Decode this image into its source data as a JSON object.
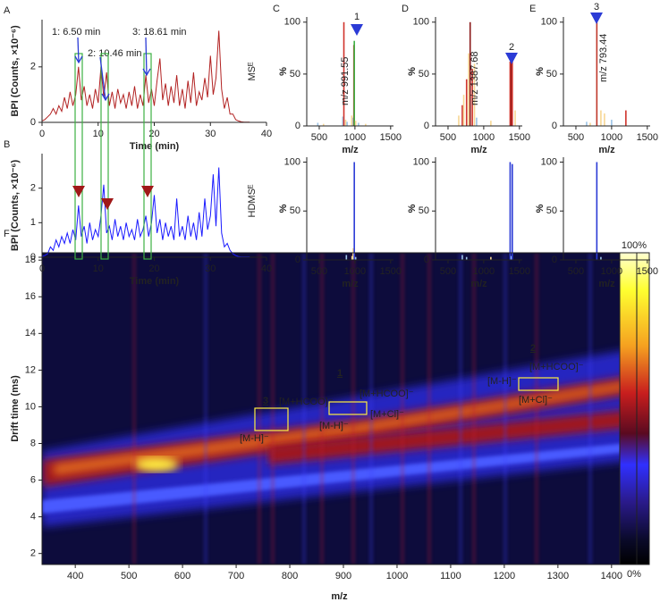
{
  "chart_data": [
    {
      "type": "line",
      "panel": "A",
      "ylabel": "BPI (Counts, ×10⁻⁶)",
      "xlabel": "Time (min)",
      "color": "#b22222",
      "xlim": [
        0,
        40
      ],
      "ylim": [
        0,
        3.7
      ],
      "xticks": [
        0,
        10,
        20,
        30,
        40
      ],
      "yticks": [
        0,
        2
      ],
      "annotations": [
        "1: 6.50 min",
        "2: 10.46 min",
        "3: 18.61 min",
        "MSᴱ"
      ],
      "x": [
        0,
        0.5,
        1,
        1.5,
        2,
        2.5,
        3,
        3.5,
        4,
        4.5,
        5,
        5.5,
        6,
        6.5,
        7,
        7.5,
        8,
        8.5,
        9,
        9.5,
        10,
        10.5,
        11,
        11.5,
        12,
        12.5,
        13,
        13.5,
        14,
        14.5,
        15,
        15.5,
        16,
        16.5,
        17,
        17.5,
        18,
        18.5,
        19,
        19.5,
        20,
        20.5,
        21,
        21.5,
        22,
        22.5,
        23,
        23.5,
        24,
        24.5,
        25,
        25.5,
        26,
        26.5,
        27,
        27.5,
        28,
        28.5,
        29,
        29.5,
        30,
        30.5,
        31,
        31.5,
        32,
        32.5,
        33,
        33.5,
        34,
        34.5,
        35,
        35.5,
        36,
        36.5,
        37
      ],
      "values": [
        0.05,
        0.1,
        0.2,
        0.3,
        0.5,
        0.3,
        0.6,
        0.4,
        0.9,
        0.5,
        1.1,
        0.6,
        1.0,
        2.0,
        0.8,
        1.3,
        0.6,
        1.0,
        0.5,
        1.2,
        0.7,
        2.0,
        0.9,
        1.8,
        0.6,
        1.1,
        0.5,
        1.2,
        0.7,
        1.0,
        0.5,
        1.1,
        0.6,
        1.3,
        0.5,
        1.0,
        0.6,
        1.7,
        0.7,
        1.2,
        0.6,
        1.5,
        2.3,
        0.8,
        1.4,
        0.6,
        1.3,
        0.7,
        1.7,
        0.6,
        1.2,
        0.5,
        1.5,
        0.7,
        1.8,
        0.6,
        1.1,
        0.8,
        1.6,
        0.9,
        2.4,
        1.0,
        1.6,
        3.3,
        1.2,
        0.5,
        0.9,
        0.3,
        0.3,
        0.1,
        0.05,
        0.02,
        0.01,
        0.01,
        0.01
      ]
    },
    {
      "type": "line",
      "panel": "B",
      "ylabel": "BPI (Counts, ×10⁻⁶)",
      "xlabel": "Time (min)",
      "color": "#1a1aff",
      "xlim": [
        0,
        40
      ],
      "ylim": [
        0,
        3
      ],
      "xticks": [
        0,
        10,
        20,
        30,
        40
      ],
      "yticks": [
        0,
        1,
        2
      ],
      "annotations": [
        "HDMSᴱ"
      ],
      "x": [
        0,
        0.5,
        1,
        1.5,
        2,
        2.5,
        3,
        3.5,
        4,
        4.5,
        5,
        5.5,
        6,
        6.5,
        7,
        7.5,
        8,
        8.5,
        9,
        9.5,
        10,
        10.5,
        11,
        11.5,
        12,
        12.5,
        13,
        13.5,
        14,
        14.5,
        15,
        15.5,
        16,
        16.5,
        17,
        17.5,
        18,
        18.5,
        19,
        19.5,
        20,
        20.5,
        21,
        21.5,
        22,
        22.5,
        23,
        23.5,
        24,
        24.5,
        25,
        25.5,
        26,
        26.5,
        27,
        27.5,
        28,
        28.5,
        29,
        29.5,
        30,
        30.5,
        31,
        31.5,
        32,
        32.5,
        33,
        33.5,
        34,
        34.5,
        35,
        35.5,
        36,
        36.5,
        37
      ],
      "values": [
        0.02,
        0.05,
        0.1,
        0.3,
        0.2,
        0.5,
        0.3,
        0.6,
        0.4,
        0.7,
        0.4,
        0.8,
        0.5,
        1.5,
        0.6,
        0.9,
        0.4,
        1.0,
        0.5,
        0.8,
        0.6,
        1.2,
        2.1,
        0.7,
        0.9,
        0.5,
        1.1,
        0.6,
        0.9,
        0.5,
        1.0,
        0.6,
        0.8,
        0.5,
        1.1,
        0.6,
        0.8,
        1.2,
        0.6,
        1.0,
        1.8,
        0.7,
        1.1,
        0.5,
        1.0,
        0.6,
        0.9,
        0.5,
        1.7,
        0.6,
        0.9,
        0.5,
        1.2,
        0.6,
        1.0,
        0.5,
        1.3,
        0.6,
        1.7,
        0.8,
        1.2,
        2.4,
        0.9,
        2.6,
        0.7,
        0.3,
        0.4,
        0.2,
        0.1,
        0.05,
        0.02,
        0.01,
        0.01,
        0.01,
        0.01
      ]
    },
    {
      "type": "bar",
      "panel": "C",
      "ylabel": "%",
      "xlabel": "m/z",
      "xlim": [
        325,
        1540
      ],
      "ylim": [
        0,
        105
      ],
      "xticks": [
        500,
        1000,
        1500
      ],
      "yticks": [
        0,
        50,
        100
      ],
      "annotations": [
        "m/z 991.55",
        "1"
      ],
      "x": [
        480,
        560,
        830,
        845,
        870,
        890,
        955,
        975,
        985,
        991,
        1010,
        1050,
        1150
      ],
      "values": [
        3,
        2,
        9,
        100,
        6,
        4,
        10,
        8,
        78,
        82,
        5,
        3,
        2
      ],
      "colors": [
        "#9cc3e6",
        "#f7d794",
        "#9cc3e6",
        "#d0342c",
        "#f7d794",
        "#9cc3e6",
        "#f7d794",
        "#9cc3e6",
        "#d0342c",
        "#3cb043",
        "#f7d794",
        "#9cc3e6",
        "#f7d794"
      ]
    },
    {
      "type": "bar",
      "ylabel": "%",
      "xlabel": "m/z",
      "xlim": [
        325,
        1540
      ],
      "ylim": [
        0,
        105
      ],
      "xticks": [
        500,
        1000,
        1500
      ],
      "yticks": [
        0,
        50,
        100
      ],
      "x": [
        880,
        960,
        975,
        991,
        1010
      ],
      "values": [
        5,
        4,
        12,
        100,
        3
      ],
      "colors": [
        "#9cc3e6",
        "#f7d794",
        "#f7d794",
        "#2b3bd6",
        "#9cc3e6"
      ]
    },
    {
      "type": "bar",
      "panel": "D",
      "ylabel": "%",
      "xlabel": "m/z",
      "xlim": [
        325,
        1540
      ],
      "ylim": [
        0,
        105
      ],
      "xticks": [
        500,
        1000,
        1500
      ],
      "yticks": [
        0,
        50,
        100
      ],
      "annotations": [
        "m/z 1387.68",
        "2"
      ],
      "x": [
        650,
        700,
        720,
        760,
        790,
        810,
        840,
        870,
        900,
        1100,
        1370,
        1387,
        1400,
        1440
      ],
      "values": [
        10,
        20,
        30,
        45,
        70,
        100,
        55,
        60,
        8,
        5,
        62,
        65,
        63,
        15
      ],
      "colors": [
        "#f7d794",
        "#d0342c",
        "#f7d794",
        "#d0342c",
        "#f7d794",
        "#8b1a1a",
        "#d0342c",
        "#f7d794",
        "#9cc3e6",
        "#f7d794",
        "#d0342c",
        "#8b1a1a",
        "#d0342c",
        "#f7d794"
      ]
    },
    {
      "type": "bar",
      "ylabel": "%",
      "xlabel": "m/z",
      "xlim": [
        325,
        1540
      ],
      "ylim": [
        0,
        105
      ],
      "xticks": [
        500,
        1000,
        1500
      ],
      "yticks": [
        0,
        50,
        100
      ],
      "x": [
        700,
        760,
        1100,
        1370,
        1387,
        1400
      ],
      "values": [
        5,
        3,
        3,
        100,
        4,
        98
      ],
      "colors": [
        "#9cc3e6",
        "#9cc3e6",
        "#f7d794",
        "#2b3bd6",
        "#9cc3e6",
        "#2b3bd6"
      ]
    },
    {
      "type": "bar",
      "panel": "E",
      "ylabel": "%",
      "xlabel": "m/z",
      "xlim": [
        325,
        1540
      ],
      "ylim": [
        0,
        105
      ],
      "xticks": [
        500,
        1000,
        1500
      ],
      "yticks": [
        0,
        50,
        100
      ],
      "annotations": [
        "m/z 793.44",
        "3"
      ],
      "x": [
        650,
        700,
        793,
        850,
        900,
        1000,
        1200
      ],
      "values": [
        4,
        3,
        100,
        15,
        12,
        6,
        15
      ],
      "colors": [
        "#9cc3e6",
        "#f7d794",
        "#c0392b",
        "#f7d794",
        "#f7d794",
        "#9cc3e6",
        "#d0342c"
      ]
    },
    {
      "type": "bar",
      "ylabel": "%",
      "xlabel": "m/z",
      "xlim": [
        325,
        1540
      ],
      "ylim": [
        0,
        105
      ],
      "xticks": [
        500,
        1000,
        1500
      ],
      "yticks": [
        0,
        50,
        100
      ],
      "x": [
        793,
        850
      ],
      "values": [
        100,
        3
      ],
      "colors": [
        "#2b3bd6",
        "#9cc3e6"
      ]
    },
    {
      "type": "heatmap",
      "panel": "F",
      "ylabel": "Drift time (ms)",
      "xlabel": "m/z",
      "xlim": [
        338,
        1447
      ],
      "ylim": [
        1.4,
        18.4
      ],
      "xticks": [
        400,
        500,
        600,
        700,
        800,
        900,
        1000,
        1100,
        1200,
        1300,
        1400
      ],
      "yticks": [
        2,
        4,
        6,
        8,
        10,
        12,
        14,
        16,
        18
      ],
      "colorbar_labels": [
        "100%",
        "0%"
      ],
      "annotations": [
        "3",
        "[M+HCOO]⁻",
        "[M-H]⁻",
        "1",
        "[M+HCOO]⁻",
        "[M-H]⁻",
        "[M+Cl]⁻",
        "2",
        "[M+HCOO]⁻",
        "[M-H]⁻",
        "[M+Cl]⁻"
      ]
    }
  ]
}
